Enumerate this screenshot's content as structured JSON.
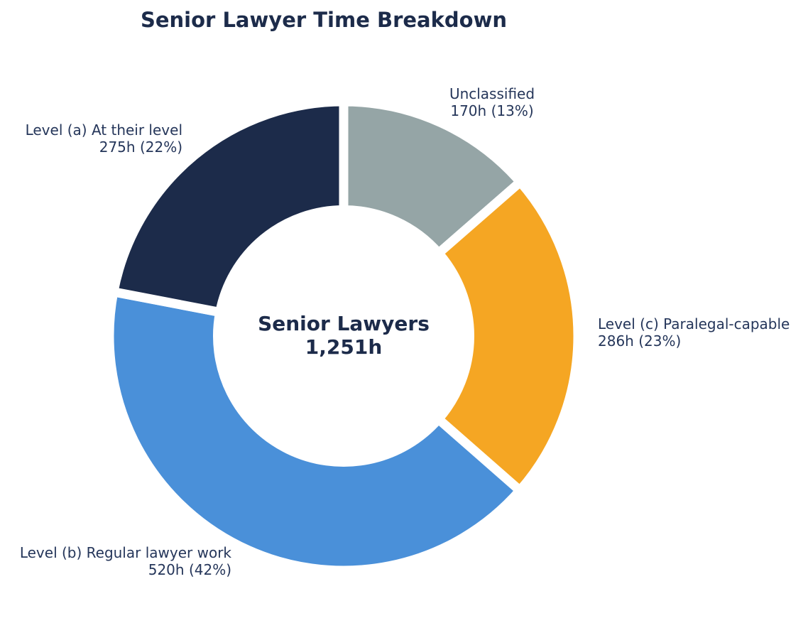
{
  "page": {
    "background_color": "#ffffff",
    "title_color": "#1c2b4a",
    "label_color": "#25365a"
  },
  "title": {
    "text": "Senior Lawyer Time Breakdown"
  },
  "chart_data": {
    "type": "pie",
    "subtype": "donut",
    "title": "Senior Lawyer Time Breakdown",
    "center_label": "Senior Lawyers",
    "center_value": "1,251h",
    "total_hours": 1251,
    "units": "hours",
    "direction": "clockwise",
    "start_angle": "12 o'clock",
    "legend": "none",
    "gap_color": "#ffffff",
    "segments": [
      {
        "id": "unclassified",
        "label": "Unclassified",
        "hours": 170,
        "percent": 13,
        "value_text": "170h (13%)",
        "color": "#95a5a6"
      },
      {
        "id": "level-c",
        "label": "Level (c) Paralegal-capable",
        "hours": 286,
        "percent": 23,
        "value_text": "286h (23%)",
        "color": "#f5a623"
      },
      {
        "id": "level-b",
        "label": "Level (b) Regular lawyer work",
        "hours": 520,
        "percent": 42,
        "value_text": "520h (42%)",
        "color": "#4a90d9"
      },
      {
        "id": "level-a",
        "label": "Level (a) At their level",
        "hours": 275,
        "percent": 22,
        "value_text": "275h (22%)",
        "color": "#1c2b4a"
      }
    ]
  }
}
